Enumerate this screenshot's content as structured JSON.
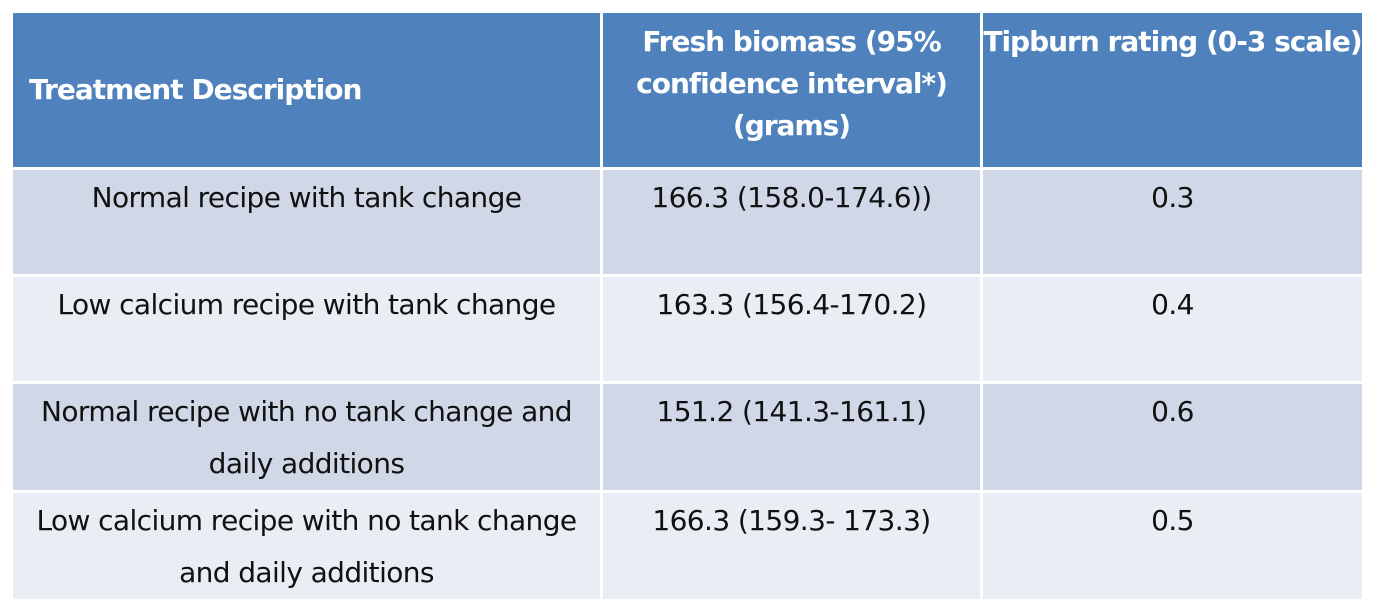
{
  "table": {
    "headers": [
      "Treatment Description",
      "Fresh biomass  (95% confidence interval*) (grams)",
      "Tipburn rating (0-3 scale)"
    ],
    "rows": [
      {
        "treatment": "Normal recipe with tank change",
        "biomass": "166.3 (158.0-174.6))",
        "tipburn": "0.3"
      },
      {
        "treatment": "Low calcium recipe with tank change",
        "biomass": "163.3 (156.4-170.2)",
        "tipburn": "0.4"
      },
      {
        "treatment": "Normal recipe with no tank change and daily additions",
        "biomass": "151.2  (141.3-161.1)",
        "tipburn": "0.6"
      },
      {
        "treatment": "Low calcium recipe with no tank change and daily additions",
        "biomass": "166.3 (159.3- 173.3)",
        "tipburn": "0.5"
      }
    ]
  },
  "colors": {
    "header_bg": "#4f81bd",
    "row_odd_bg": "#d0d8e8",
    "row_even_bg": "#e9edf4",
    "header_text": "#ffffff"
  }
}
